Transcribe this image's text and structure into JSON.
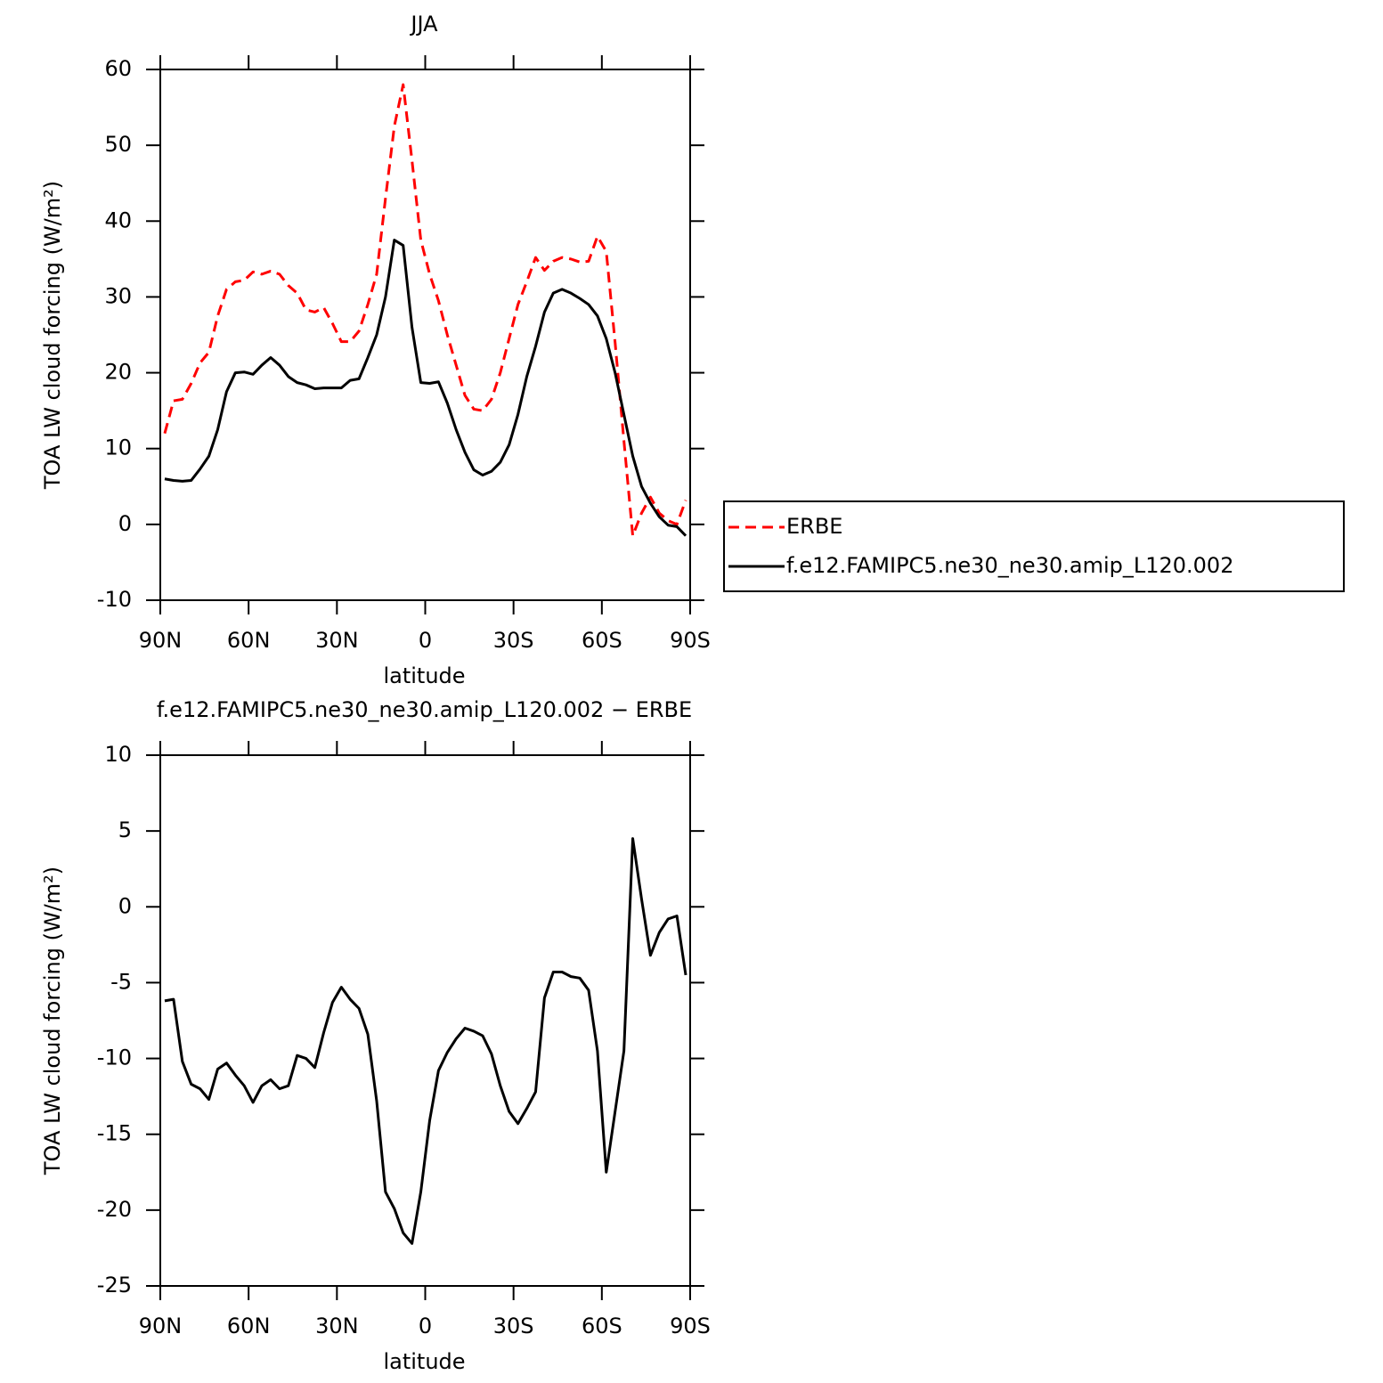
{
  "chart_data": [
    {
      "type": "line",
      "title": "JJA",
      "xlabel": "latitude",
      "ylabel": "TOA LW cloud forcing (W/m²)",
      "x": [
        88.5,
        85.5,
        82.5,
        79.5,
        76.5,
        73.5,
        70.5,
        67.5,
        64.5,
        61.5,
        58.5,
        55.5,
        52.5,
        49.5,
        46.5,
        43.5,
        40.5,
        37.5,
        34.5,
        31.5,
        28.5,
        25.5,
        22.5,
        19.5,
        16.5,
        13.5,
        10.5,
        7.5,
        4.5,
        1.5,
        -1.5,
        -4.5,
        -7.5,
        -10.5,
        -13.5,
        -16.5,
        -19.5,
        -22.5,
        -25.5,
        -28.5,
        -31.5,
        -34.5,
        -37.5,
        -40.5,
        -43.5,
        -46.5,
        -49.5,
        -52.5,
        -55.5,
        -58.5,
        -61.5,
        -64.5,
        -67.5,
        -70.5,
        -73.5,
        -76.5,
        -79.5,
        -82.5,
        -85.5,
        -88.5
      ],
      "series": [
        {
          "name": "ERBE",
          "color": "#ff0000",
          "linestyle": "dashed",
          "values": [
            12.0,
            16.3,
            16.5,
            18.6,
            21.3,
            22.7,
            27.5,
            31.0,
            32.0,
            32.2,
            33.3,
            33.0,
            33.4,
            33.0,
            31.5,
            30.5,
            28.3,
            28.0,
            28.6,
            26.5,
            24.1,
            24.1,
            25.5,
            29.0,
            33.0,
            43.0,
            52.5,
            58.0,
            48.0,
            37.5,
            33.0,
            29.5,
            25.0,
            21.0,
            17.0,
            15.2,
            15.0,
            16.5,
            20.0,
            24.5,
            29.0,
            32.0,
            35.2,
            33.5,
            34.7,
            35.2,
            35.0,
            34.6,
            34.7,
            38.0,
            36.0,
            24.0,
            11.0,
            -1.5,
            1.5,
            3.6,
            1.5,
            0.5,
            0.0,
            3.2
          ]
        },
        {
          "name": "f.e12.FAMIPC5.ne30_ne30.amip_L120.002",
          "color": "#000000",
          "linestyle": "solid",
          "values": [
            6.0,
            5.8,
            5.7,
            5.8,
            7.3,
            9.0,
            12.5,
            17.5,
            20.0,
            20.1,
            19.8,
            21.0,
            22.0,
            21.0,
            19.5,
            18.7,
            18.4,
            17.9,
            18.0,
            18.0,
            18.0,
            19.0,
            19.2,
            22.0,
            25.0,
            30.0,
            37.5,
            36.8,
            26.0,
            18.7,
            18.6,
            18.8,
            16.0,
            12.5,
            9.5,
            7.2,
            6.5,
            7.0,
            8.2,
            10.5,
            14.5,
            19.5,
            23.5,
            28.0,
            30.5,
            31.0,
            30.5,
            29.8,
            29.0,
            27.5,
            24.5,
            20.0,
            14.5,
            9.0,
            5.0,
            2.8,
            1.0,
            -0.1,
            -0.3,
            -1.5
          ]
        }
      ],
      "xlim": [
        90,
        -90
      ],
      "xticks": [
        {
          "value": 90,
          "label": "90N"
        },
        {
          "value": 60,
          "label": "60N"
        },
        {
          "value": 30,
          "label": "30N"
        },
        0,
        {
          "value": -30,
          "label": "30S"
        },
        {
          "value": -60,
          "label": "60S"
        },
        {
          "value": -90,
          "label": "90S"
        }
      ],
      "ylim": [
        -10,
        60
      ],
      "yticks": [
        -10,
        0,
        10,
        20,
        30,
        40,
        50,
        60
      ],
      "legend": "right"
    },
    {
      "type": "line",
      "title": "f.e12.FAMIPC5.ne30_ne30.amip_L120.002 − ERBE",
      "xlabel": "latitude",
      "ylabel": "TOA LW cloud forcing (W/m²)",
      "x": [
        88.5,
        85.5,
        82.5,
        79.5,
        76.5,
        73.5,
        70.5,
        67.5,
        64.5,
        61.5,
        58.5,
        55.5,
        52.5,
        49.5,
        46.5,
        43.5,
        40.5,
        37.5,
        34.5,
        31.5,
        28.5,
        25.5,
        22.5,
        19.5,
        16.5,
        13.5,
        10.5,
        7.5,
        4.5,
        1.5,
        -1.5,
        -4.5,
        -7.5,
        -10.5,
        -13.5,
        -16.5,
        -19.5,
        -22.5,
        -25.5,
        -28.5,
        -31.5,
        -34.5,
        -37.5,
        -40.5,
        -43.5,
        -46.5,
        -49.5,
        -52.5,
        -55.5,
        -58.5,
        -61.5,
        -64.5,
        -67.5,
        -70.5,
        -73.5,
        -76.5,
        -79.5,
        -82.5,
        -85.5,
        -88.5
      ],
      "series": [
        {
          "color": "#000000",
          "linestyle": "solid",
          "values": [
            -6.2,
            -6.1,
            -10.2,
            -11.7,
            -12.0,
            -12.7,
            -10.7,
            -10.3,
            -11.1,
            -11.8,
            -12.9,
            -11.8,
            -11.4,
            -12.0,
            -11.8,
            -9.8,
            -10.0,
            -10.6,
            -8.3,
            -6.3,
            -5.3,
            -6.1,
            -6.7,
            -8.4,
            -12.8,
            -18.8,
            -19.9,
            -21.5,
            -22.2,
            -18.8,
            -14.1,
            -10.8,
            -9.6,
            -8.7,
            -8.0,
            -8.2,
            -8.5,
            -9.7,
            -11.8,
            -13.5,
            -14.3,
            -13.3,
            -12.2,
            -6.0,
            -4.3,
            -4.3,
            -4.6,
            -4.7,
            -5.5,
            -9.5,
            -17.5,
            -13.5,
            -9.5,
            4.5,
            0.5,
            -3.2,
            -1.7,
            -0.8,
            -0.6,
            -4.5
          ]
        }
      ],
      "xlim": [
        90,
        -90
      ],
      "xticks": [
        {
          "value": 90,
          "label": "90N"
        },
        {
          "value": 60,
          "label": "60N"
        },
        {
          "value": 30,
          "label": "30N"
        },
        0,
        {
          "value": -30,
          "label": "30S"
        },
        {
          "value": -60,
          "label": "60S"
        },
        {
          "value": -90,
          "label": "90S"
        }
      ],
      "ylim": [
        -25,
        10
      ],
      "yticks": [
        -25,
        -20,
        -15,
        -10,
        -5,
        0,
        5,
        10
      ]
    }
  ]
}
